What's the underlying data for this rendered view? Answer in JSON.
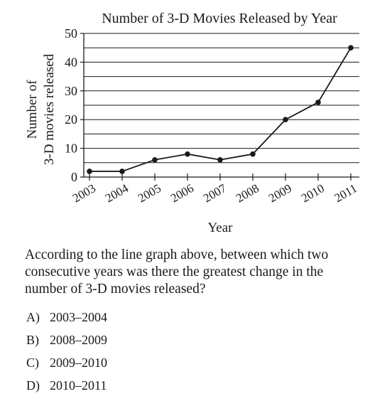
{
  "chart_data": {
    "type": "line",
    "title": "Number of 3-D Movies Released by Year",
    "xlabel": "Year",
    "ylabel_lines": [
      "Number of",
      "3-D movies released"
    ],
    "categories": [
      "2003",
      "2004",
      "2005",
      "2006",
      "2007",
      "2008",
      "2009",
      "2010",
      "2011"
    ],
    "values": [
      2,
      2,
      6,
      8,
      6,
      8,
      20,
      26,
      45
    ],
    "ylim": [
      0,
      50
    ],
    "yticks": [
      0,
      10,
      20,
      30,
      40,
      50
    ],
    "grid": true,
    "minor_grid_step": 5,
    "legend": "none",
    "colors": {
      "line": "#1a1a1a",
      "grid": "#1a1a1a"
    }
  },
  "question": {
    "text": "According to the line graph above, between which two consecutive years was there the greatest change in the number of 3-D movies released?",
    "choices": [
      {
        "letter": "A)",
        "text": "2003–2004"
      },
      {
        "letter": "B)",
        "text": "2008–2009"
      },
      {
        "letter": "C)",
        "text": "2009–2010"
      },
      {
        "letter": "D)",
        "text": "2010–2011"
      }
    ]
  }
}
